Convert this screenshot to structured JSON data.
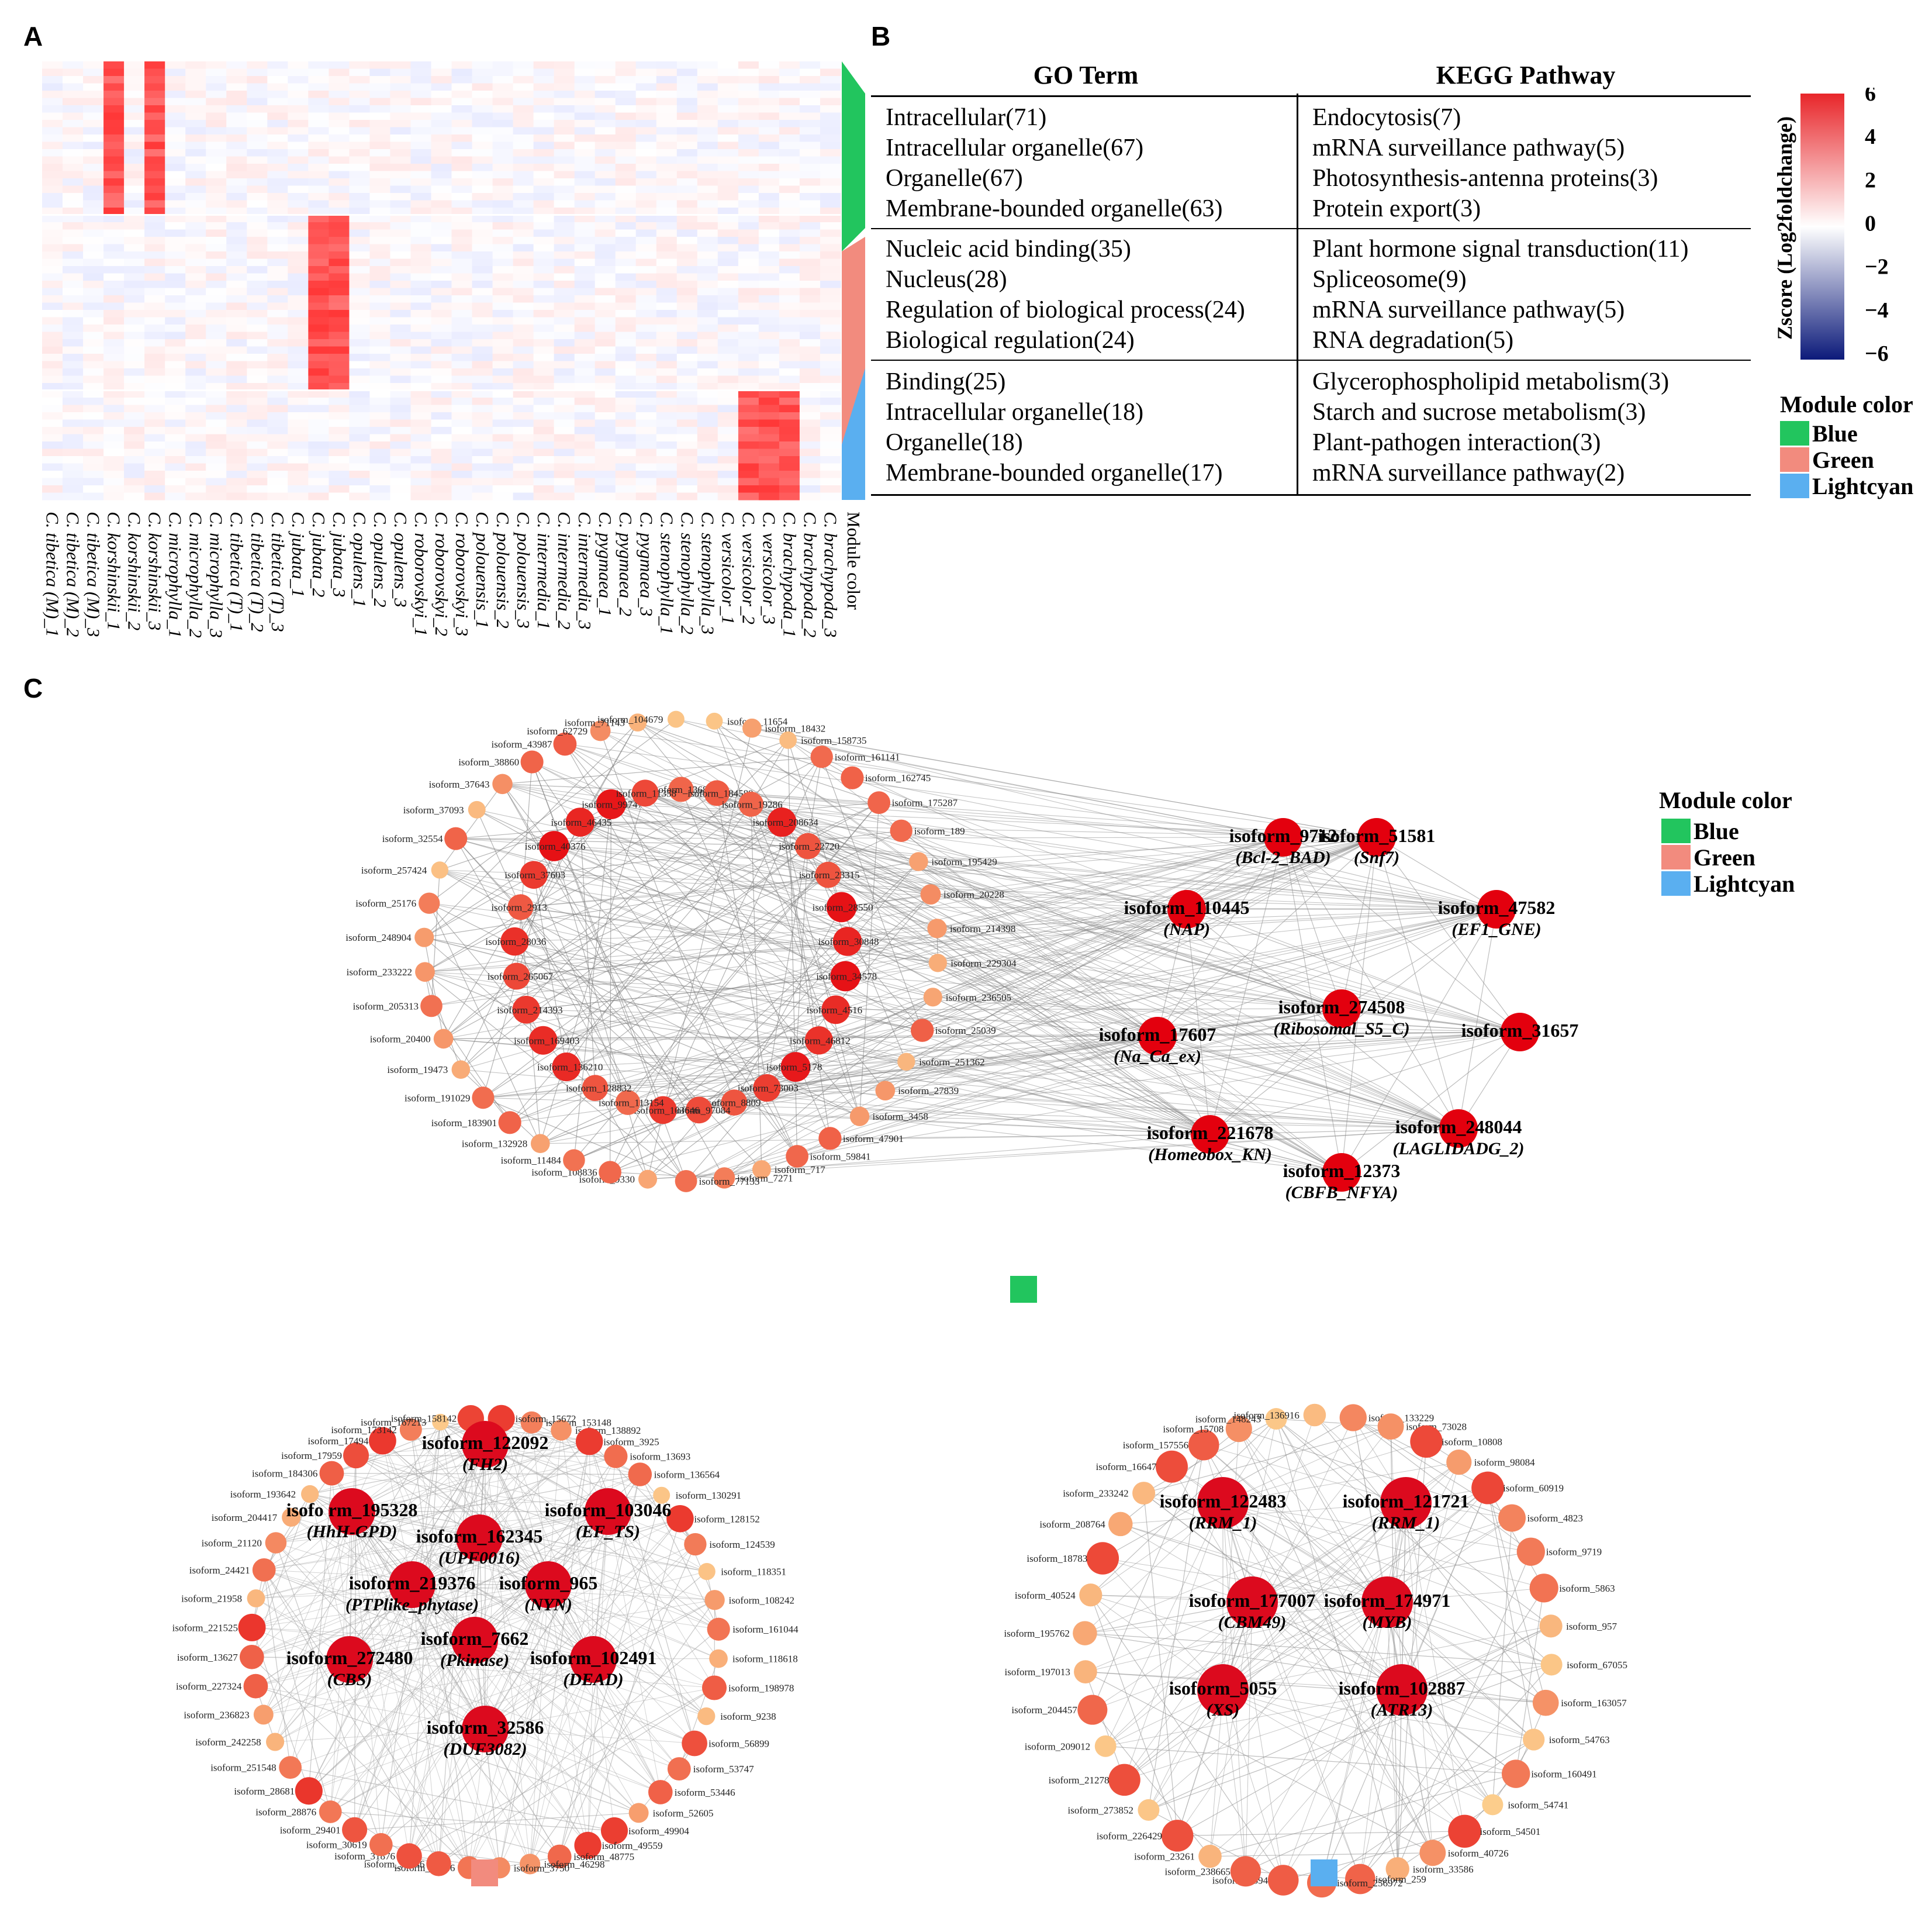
{
  "panels": {
    "a": "A",
    "b": "B",
    "c": "C"
  },
  "heatmap": {
    "samples": [
      "C. tibetica (M)_1",
      "C. tibetica (M)_2",
      "C. tibetica (M)_3",
      "C. korshinskii_1",
      "C. korshinskii_2",
      "C. korshinskii_3",
      "C. microphylla_1",
      "C. microphylla_2",
      "C. microphylla_3",
      "C. tibetica (T)_1",
      "C. tibetica (T)_2",
      "C. tibetica (T)_3",
      "C. jubata_1",
      "C. jubata_2",
      "C. jubata_3",
      "C. opulens_1",
      "C. opulens_2",
      "C. opulens_3",
      "C. roborovskyi_1",
      "C. roborovskyi_2",
      "C. roborovskyi_3",
      "C. polouensis_1",
      "C. polouensis_2",
      "C. polouensis_3",
      "C. intermedia_1",
      "C. intermedia_2",
      "C. intermedia_3",
      "C. pygmaea_1",
      "C. pygmaea_2",
      "C. pygmaea_3",
      "C. stenophylla_1",
      "C. stenophylla_2",
      "C. stenophylla_3",
      "C. versicolor_1",
      "C. versicolor_2",
      "C. versicolor_3",
      "C. brachypoda_1",
      "C. brachypoda_2",
      "C. brachypoda_3"
    ],
    "module_column_label": "Module color",
    "modules": [
      "Blue",
      "Green",
      "Lightcyan"
    ],
    "module_colors": {
      "Blue": "#22c55e",
      "Green": "#f28b7e",
      "Lightcyan": "#5aaff0"
    },
    "colorbar": {
      "title": "Zscore (Log2foldchange)",
      "ticks": [
        "6",
        "4",
        "2",
        "0",
        "−2",
        "−4",
        "−6"
      ]
    }
  },
  "table": {
    "headers": [
      "GO  Term",
      "KEGG Pathway"
    ],
    "rows": [
      {
        "go": [
          "Intracellular(71)",
          "Intracellular organelle(67)",
          "Organelle(67)",
          "Membrane-bounded organelle(63)"
        ],
        "kegg": [
          "Endocytosis(7)",
          "mRNA surveillance pathway(5)",
          "Photosynthesis-antenna proteins(3)",
          "Protein export(3)"
        ]
      },
      {
        "go": [
          "Nucleic acid binding(35)",
          "Nucleus(28)",
          "Regulation of biological process(24)",
          "Biological regulation(24)"
        ],
        "kegg": [
          "Plant hormone signal transduction(11)",
          "Spliceosome(9)",
          "mRNA surveillance pathway(5)",
          "RNA degradation(5)"
        ]
      },
      {
        "go": [
          "Binding(25)",
          "Intracellular organelle(18)",
          "Organelle(18)",
          "Membrane-bounded organelle(17)"
        ],
        "kegg": [
          "Glycerophospholipid metabolism(3)",
          "Starch and sucrose metabolism(3)",
          "Plant-pathogen interaction(3)",
          "mRNA surveillance pathway(2)"
        ]
      }
    ]
  },
  "module_legend": {
    "title": "Module color",
    "items": [
      "Blue",
      "Green",
      "Lightcyan"
    ]
  },
  "networks": {
    "blue": {
      "ring": [
        "isoform_11654",
        "isoform_18432",
        "isoform_158735",
        "isoform_161141",
        "isoform_162745",
        "isoform_175287",
        "isoform_189",
        "isoform_195429",
        "isoform_20228",
        "isoform_214398",
        "isoform_229304",
        "isoform_236505",
        "isoform_25039",
        "isoform_251362",
        "isoform_27839",
        "isoform_3458",
        "isoform_47901",
        "isoform_59841",
        "isoform_717",
        "isoform_7271",
        "isoform_77133",
        "isoform_9330",
        "isoform_108836",
        "isoform_11484",
        "isoform_132928",
        "isoform_183901",
        "isoform_191029",
        "isoform_19473",
        "isoform_20400",
        "isoform_205313",
        "isoform_233222",
        "isoform_248904",
        "isoform_25176",
        "isoform_257424",
        "isoform_32554",
        "isoform_37093",
        "isoform_37643",
        "isoform_38860",
        "isoform_43987",
        "isoform_62729",
        "isoform_71143",
        "isoform_104679"
      ],
      "inner": [
        "isoform_1368",
        "isoform_184589",
        "isoform_19286",
        "isoform_208634",
        "isoform_22720",
        "isoform_23315",
        "isoform_28550",
        "isoform_30848",
        "isoform_34578",
        "isoform_4516",
        "isoform_46812",
        "isoform_5178",
        "isoform_73003",
        "isoform_8809",
        "isoform_97084",
        "isoform_103646",
        "isoform_113154",
        "isoform_128832",
        "isoform_136210",
        "isoform_169403",
        "isoform_214393",
        "isoform_265067",
        "isoform_28036",
        "isoform_2913",
        "isoform_37603",
        "isoform_40376",
        "isoform_46435",
        "isoform_99747",
        "isoform_11358"
      ],
      "hubs": [
        {
          "id": "isoform_9712",
          "domain": "(Bcl-2_BAD)"
        },
        {
          "id": "isoform_51581",
          "domain": "(Snf7)"
        },
        {
          "id": "isoform_110445",
          "domain": "(NAP)"
        },
        {
          "id": "isoform_47582",
          "domain": "(EF1_GNE)"
        },
        {
          "id": "isoform_274508",
          "domain": "(Ribosomal_S5_C)"
        },
        {
          "id": "isoform_17607",
          "domain": "(Na_Ca_ex)"
        },
        {
          "id": "isoform_31657",
          "domain": ""
        },
        {
          "id": "isoform_221678",
          "domain": "(Homeobox_KN)"
        },
        {
          "id": "isoform_248044",
          "domain": "(LAGLIDADG_2)"
        },
        {
          "id": "isoform_12373",
          "domain": "(CBFB_NFYA)"
        }
      ]
    },
    "green": {
      "ring": [
        "isoform_153148",
        "isoform_138892",
        "isoform_3925",
        "isoform_13693",
        "isoform_136564",
        "isoform_130291",
        "isoform_128152",
        "isoform_124539",
        "isoform_118351",
        "isoform_108242",
        "isoform_161044",
        "isoform_118618",
        "isoform_198978",
        "isoform_9238",
        "isoform_56899",
        "isoform_53747",
        "isoform_53446",
        "isoform_52605",
        "isoform_49904",
        "isoform_49559",
        "isoform_48775",
        "isoform_46298",
        "isoform_3750",
        "isoform_34246",
        "isoform_31946",
        "isoform_31876",
        "isoform_30619",
        "isoform_29401",
        "isoform_28876",
        "isoform_28681",
        "isoform_251548",
        "isoform_242258",
        "isoform_236823",
        "isoform_227324",
        "isoform_13627",
        "isoform_221525",
        "isoform_21958",
        "isoform_24421",
        "isoform_21120",
        "isoform_204417",
        "isoform_193642",
        "isoform_184306",
        "isoform_17959",
        "isoform_17494",
        "isoform_173142",
        "isoform_167213",
        "isoform_158142",
        "isoform_15672"
      ],
      "hubs": [
        {
          "id": "isoform_122092",
          "domain": "(FH2)"
        },
        {
          "id": "isofo rm_195328",
          "domain": "(HhH-GPD)"
        },
        {
          "id": "isoform_103046",
          "domain": "(EF_TS)"
        },
        {
          "id": "isoform_162345",
          "domain": "(UPF0016)"
        },
        {
          "id": "isoform_219376",
          "domain": "(PTPlike_phytase)"
        },
        {
          "id": "isoform_965",
          "domain": "(NYN)"
        },
        {
          "id": "isoform_7662",
          "domain": "(Pkinase)"
        },
        {
          "id": "isoform_272480",
          "domain": "(CBS)"
        },
        {
          "id": "isoform_102491",
          "domain": "(DEAD)"
        },
        {
          "id": "isoform_32586",
          "domain": "(DUF3082)"
        }
      ]
    },
    "lightcyan": {
      "ring": [
        "isoform_133229",
        "isoform_73028",
        "isoform_10808",
        "isoform_98084",
        "isoform_60919",
        "isoform_4823",
        "isoform_9719",
        "isoform_5863",
        "isoform_957",
        "isoform_67055",
        "isoform_163057",
        "isoform_54763",
        "isoform_160491",
        "isoform_54741",
        "isoform_54501",
        "isoform_40726",
        "isoform_33586",
        "isoform_259",
        "isoform_256972",
        "isoform_3594",
        "isoform_238665",
        "isoform_23261",
        "isoform_226429",
        "isoform_273852",
        "isoform_21278",
        "isoform_209012",
        "isoform_204457",
        "isoform_197013",
        "isoform_195762",
        "isoform_40524",
        "isoform_18783",
        "isoform_208764",
        "isoform_233242",
        "isoform_16647",
        "isoform_157556",
        "isoform_15708",
        "isoform_148243",
        "isoform_136916"
      ],
      "hubs": [
        {
          "id": "isoform_122483",
          "domain": "(RRM_1)"
        },
        {
          "id": "isoform_121721",
          "domain": "(RRM_1)"
        },
        {
          "id": "isoform_177007",
          "domain": "(CBM49)"
        },
        {
          "id": "isoform_174971",
          "domain": "(MYB)"
        },
        {
          "id": "isoform_5055",
          "domain": "(XS)"
        },
        {
          "id": "isoform_102887",
          "domain": "(ATR13)"
        }
      ]
    }
  }
}
